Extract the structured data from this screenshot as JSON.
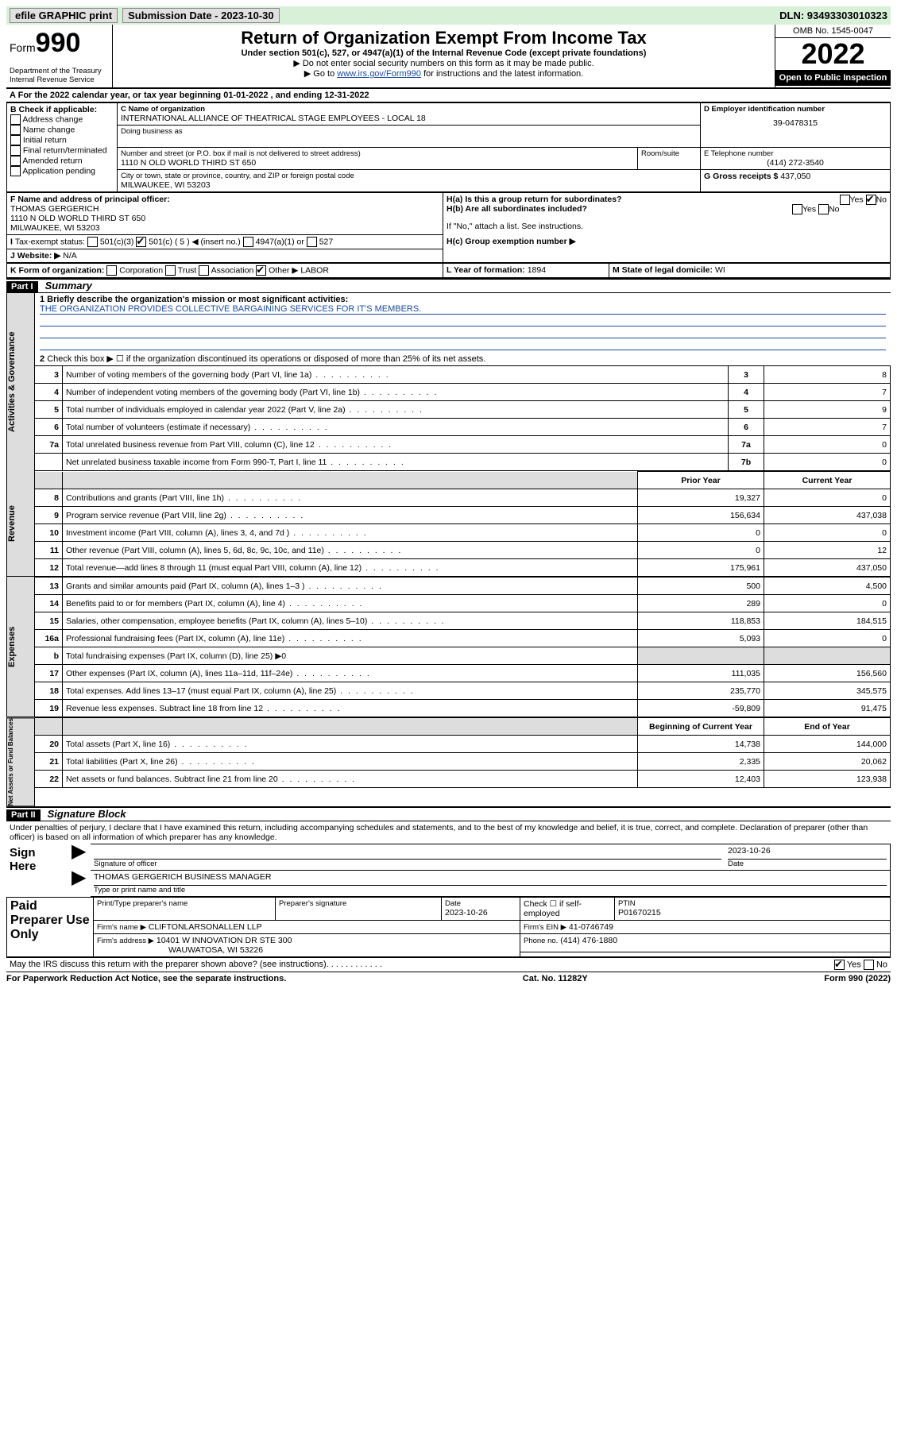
{
  "topbar": {
    "efile": "efile GRAPHIC print",
    "sub_label": "Submission Date - 2023-10-30",
    "dln": "DLN: 93493303010323"
  },
  "header": {
    "form_prefix": "Form",
    "form_num": "990",
    "dept": "Department of the Treasury Internal Revenue Service",
    "title": "Return of Organization Exempt From Income Tax",
    "subtitle": "Under section 501(c), 527, or 4947(a)(1) of the Internal Revenue Code (except private foundations)",
    "note1": "Do not enter social security numbers on this form as it may be made public.",
    "note2_pre": "Go to ",
    "note2_link": "www.irs.gov/Form990",
    "note2_post": " for instructions and the latest information.",
    "omb": "OMB No. 1545-0047",
    "year": "2022",
    "open": "Open to Public Inspection"
  },
  "a_line": "For the 2022 calendar year, or tax year beginning 01-01-2022   , and ending 12-31-2022",
  "b": {
    "header": "B Check if applicable:",
    "opts": [
      "Address change",
      "Name change",
      "Initial return",
      "Final return/terminated",
      "Amended return",
      "Application pending"
    ]
  },
  "c": {
    "label": "C Name of organization",
    "name": "INTERNATIONAL ALLIANCE OF THEATRICAL STAGE EMPLOYEES - LOCAL 18",
    "dba": "Doing business as",
    "street_label": "Number and street (or P.O. box if mail is not delivered to street address)",
    "room": "Room/suite",
    "street": "1110 N OLD WORLD THIRD ST 650",
    "city_label": "City or town, state or province, country, and ZIP or foreign postal code",
    "city": "MILWAUKEE, WI  53203"
  },
  "d": {
    "label": "D Employer identification number",
    "val": "39-0478315"
  },
  "e": {
    "label": "E Telephone number",
    "val": "(414) 272-3540"
  },
  "g": {
    "label": "G Gross receipts $",
    "val": "437,050"
  },
  "f": {
    "label": "F  Name and address of principal officer:",
    "name": "THOMAS GERGERICH",
    "addr1": "1110 N OLD WORLD THIRD ST 650",
    "addr2": "MILWAUKEE, WI  53203"
  },
  "h": {
    "a": "H(a)  Is this a group return for subordinates?",
    "a_yes": "Yes",
    "a_no": "No",
    "b": "H(b)  Are all subordinates included?",
    "b_yes": "Yes",
    "b_no": "No",
    "b_note": "If \"No,\" attach a list. See instructions.",
    "c": "H(c)  Group exemption number ▶"
  },
  "i": {
    "label": "Tax-exempt status:",
    "o1": "501(c)(3)",
    "o2": "501(c) ( 5 ) ◀ (insert no.)",
    "o3": "4947(a)(1) or",
    "o4": "527"
  },
  "j": {
    "label": "Website: ▶",
    "val": "N/A"
  },
  "k": {
    "label": "K Form of organization:",
    "opts": [
      "Corporation",
      "Trust",
      "Association",
      "Other ▶"
    ],
    "other_val": "LABOR"
  },
  "l": {
    "label": "L Year of formation:",
    "val": "1894"
  },
  "m": {
    "label": "M State of legal domicile:",
    "val": "WI"
  },
  "part1": {
    "band": "Part I",
    "title": "Summary",
    "q1_lead": "1  Briefly describe the organization's mission or most significant activities:",
    "q1_text": "THE ORGANIZATION PROVIDES COLLECTIVE BARGAINING SERVICES FOR IT'S MEMBERS.",
    "q2": "Check this box ▶ ☐  if the organization discontinued its operations or disposed of more than 25% of its net assets.",
    "hdr_prior": "Prior Year",
    "hdr_curr": "Current Year",
    "hdr_boy": "Beginning of Current Year",
    "hdr_eoy": "End of Year",
    "tabs": {
      "gov": "Activities & Governance",
      "rev": "Revenue",
      "exp": "Expenses",
      "net": "Net Assets or Fund Balances"
    },
    "gov_rows": [
      {
        "n": "3",
        "d": "Number of voting members of the governing body (Part VI, line 1a)",
        "b": "3",
        "v": "8"
      },
      {
        "n": "4",
        "d": "Number of independent voting members of the governing body (Part VI, line 1b)",
        "b": "4",
        "v": "7"
      },
      {
        "n": "5",
        "d": "Total number of individuals employed in calendar year 2022 (Part V, line 2a)",
        "b": "5",
        "v": "9"
      },
      {
        "n": "6",
        "d": "Total number of volunteers (estimate if necessary)",
        "b": "6",
        "v": "7"
      },
      {
        "n": "7a",
        "d": "Total unrelated business revenue from Part VIII, column (C), line 12",
        "b": "7a",
        "v": "0"
      },
      {
        "n": "",
        "d": "Net unrelated business taxable income from Form 990-T, Part I, line 11",
        "b": "7b",
        "v": "0"
      }
    ],
    "rev_rows": [
      {
        "n": "8",
        "d": "Contributions and grants (Part VIII, line 1h)",
        "p": "19,327",
        "c": "0"
      },
      {
        "n": "9",
        "d": "Program service revenue (Part VIII, line 2g)",
        "p": "156,634",
        "c": "437,038"
      },
      {
        "n": "10",
        "d": "Investment income (Part VIII, column (A), lines 3, 4, and 7d )",
        "p": "0",
        "c": "0"
      },
      {
        "n": "11",
        "d": "Other revenue (Part VIII, column (A), lines 5, 6d, 8c, 9c, 10c, and 11e)",
        "p": "0",
        "c": "12"
      },
      {
        "n": "12",
        "d": "Total revenue—add lines 8 through 11 (must equal Part VIII, column (A), line 12)",
        "p": "175,961",
        "c": "437,050"
      }
    ],
    "exp_rows": [
      {
        "n": "13",
        "d": "Grants and similar amounts paid (Part IX, column (A), lines 1–3 )",
        "p": "500",
        "c": "4,500"
      },
      {
        "n": "14",
        "d": "Benefits paid to or for members (Part IX, column (A), line 4)",
        "p": "289",
        "c": "0"
      },
      {
        "n": "15",
        "d": "Salaries, other compensation, employee benefits (Part IX, column (A), lines 5–10)",
        "p": "118,853",
        "c": "184,515"
      },
      {
        "n": "16a",
        "d": "Professional fundraising fees (Part IX, column (A), line 11e)",
        "p": "5,093",
        "c": "0"
      },
      {
        "n": "b",
        "d": "Total fundraising expenses (Part IX, column (D), line 25) ▶0",
        "p": "",
        "c": "",
        "shade": true
      },
      {
        "n": "17",
        "d": "Other expenses (Part IX, column (A), lines 11a–11d, 11f–24e)",
        "p": "111,035",
        "c": "156,560"
      },
      {
        "n": "18",
        "d": "Total expenses. Add lines 13–17 (must equal Part IX, column (A), line 25)",
        "p": "235,770",
        "c": "345,575"
      },
      {
        "n": "19",
        "d": "Revenue less expenses. Subtract line 18 from line 12",
        "p": "-59,809",
        "c": "91,475"
      }
    ],
    "net_rows": [
      {
        "n": "20",
        "d": "Total assets (Part X, line 16)",
        "p": "14,738",
        "c": "144,000"
      },
      {
        "n": "21",
        "d": "Total liabilities (Part X, line 26)",
        "p": "2,335",
        "c": "20,062"
      },
      {
        "n": "22",
        "d": "Net assets or fund balances. Subtract line 21 from line 20",
        "p": "12,403",
        "c": "123,938"
      }
    ]
  },
  "part2": {
    "band": "Part II",
    "title": "Signature Block",
    "decl": "Under penalties of perjury, I declare that I have examined this return, including accompanying schedules and statements, and to the best of my knowledge and belief, it is true, correct, and complete. Declaration of preparer (other than officer) is based on all information of which preparer has any knowledge.",
    "sign_here": "Sign Here",
    "sig_officer": "Signature of officer",
    "sig_date_lbl": "Date",
    "sig_date": "2023-10-26",
    "officer_name": "THOMAS GERGERICH  BUSINESS MANAGER",
    "officer_name_lbl": "Type or print name and title",
    "paid": "Paid Preparer Use Only",
    "pp_name_lbl": "Print/Type preparer's name",
    "pp_sig_lbl": "Preparer's signature",
    "pp_date_lbl": "Date",
    "pp_date": "2023-10-26",
    "pp_self": "Check ☐ if self-employed",
    "ptin_lbl": "PTIN",
    "ptin": "P01670215",
    "firm_name_lbl": "Firm's name    ▶",
    "firm_name": "CLIFTONLARSONALLEN LLP",
    "firm_ein_lbl": "Firm's EIN ▶",
    "firm_ein": "41-0746749",
    "firm_addr_lbl": "Firm's address ▶",
    "firm_addr1": "10401 W INNOVATION DR STE 300",
    "firm_addr2": "WAUWATOSA, WI  53226",
    "phone_lbl": "Phone no.",
    "phone": "(414) 476-1880",
    "discuss": "May the IRS discuss this return with the preparer shown above? (see instructions)",
    "yes": "Yes",
    "no": "No"
  },
  "footer": {
    "left": "For Paperwork Reduction Act Notice, see the separate instructions.",
    "mid": "Cat. No. 11282Y",
    "right": "Form 990 (2022)"
  }
}
